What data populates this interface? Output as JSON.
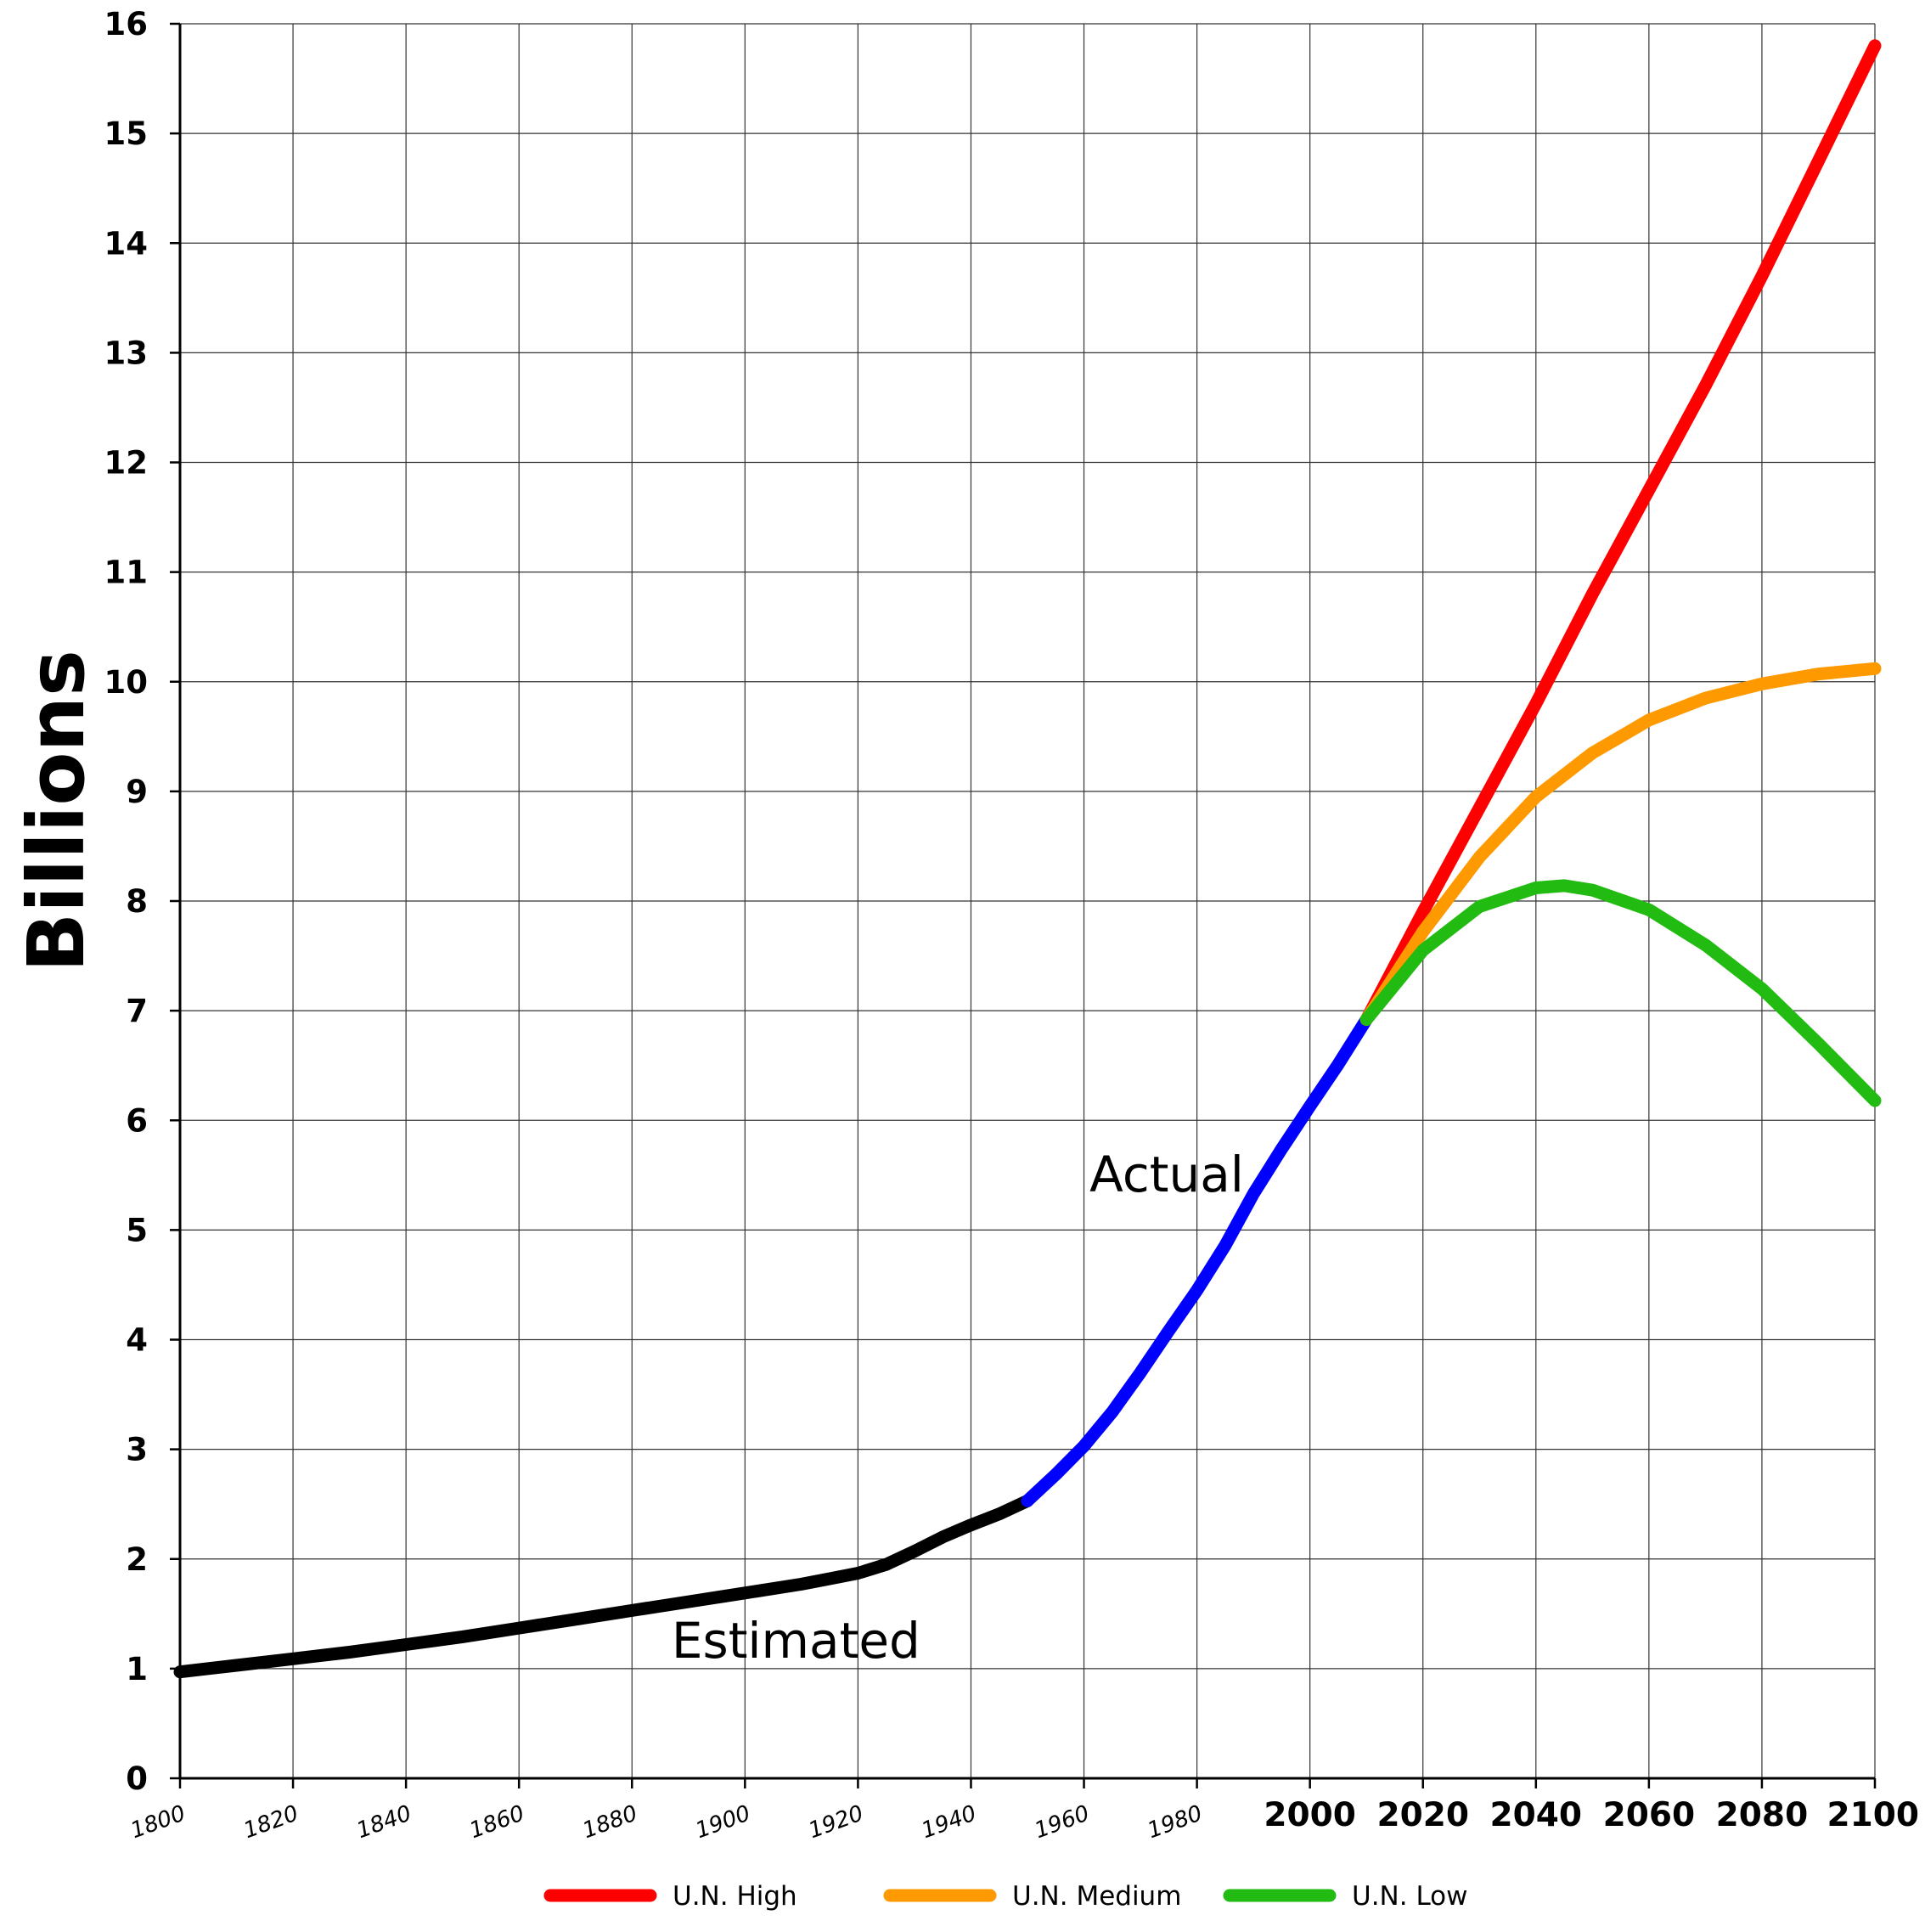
{
  "chart_data": {
    "type": "line",
    "ylabel": "Billions",
    "xlim": [
      1800,
      2100
    ],
    "ylim": [
      0,
      16
    ],
    "grid": true,
    "legend_position": "bottom",
    "x_ticks": [
      "1800",
      "1820",
      "1840",
      "1860",
      "1880",
      "1900",
      "1920",
      "1940",
      "1960",
      "1980",
      "2000",
      "2020",
      "2040",
      "2060",
      "2080",
      "2100"
    ],
    "y_ticks": [
      "0",
      "1",
      "2",
      "3",
      "4",
      "5",
      "6",
      "7",
      "8",
      "9",
      "10",
      "11",
      "12",
      "13",
      "14",
      "15",
      "16"
    ],
    "annotations": [
      {
        "text": "Estimated",
        "x": 1887,
        "y": 1.1
      },
      {
        "text": "Actual",
        "x": 1961,
        "y": 5.35
      }
    ],
    "series": [
      {
        "color": "#000000",
        "x": [
          1800,
          1810,
          1820,
          1830,
          1840,
          1850,
          1860,
          1870,
          1880,
          1890,
          1900,
          1910,
          1915,
          1920,
          1925,
          1930,
          1935,
          1940,
          1945,
          1950
        ],
        "y": [
          0.97,
          1.03,
          1.09,
          1.15,
          1.22,
          1.29,
          1.37,
          1.45,
          1.53,
          1.61,
          1.69,
          1.77,
          1.82,
          1.87,
          1.95,
          2.07,
          2.2,
          2.31,
          2.41,
          2.53
        ]
      },
      {
        "color": "#0000ff",
        "x": [
          1950,
          1955,
          1960,
          1965,
          1970,
          1975,
          1980,
          1985,
          1990,
          1995,
          2000,
          2005,
          2010
        ],
        "y": [
          2.53,
          2.77,
          3.03,
          3.34,
          3.7,
          4.08,
          4.45,
          4.86,
          5.33,
          5.74,
          6.13,
          6.51,
          6.92
        ]
      },
      {
        "name": "U.N. High",
        "color": "#ff0000",
        "x": [
          2010,
          2020,
          2030,
          2040,
          2050,
          2060,
          2070,
          2080,
          2090,
          2100
        ],
        "y": [
          6.92,
          7.9,
          8.85,
          9.8,
          10.8,
          11.75,
          12.7,
          13.7,
          14.75,
          15.8
        ]
      },
      {
        "name": "U.N. Medium",
        "color": "#ff9900",
        "x": [
          2010,
          2020,
          2030,
          2040,
          2050,
          2060,
          2070,
          2080,
          2090,
          2100
        ],
        "y": [
          6.92,
          7.72,
          8.4,
          8.95,
          9.35,
          9.65,
          9.85,
          9.98,
          10.07,
          10.12
        ]
      },
      {
        "name": "U.N. Low",
        "color": "#22bb11",
        "x": [
          2010,
          2020,
          2030,
          2040,
          2045,
          2050,
          2060,
          2070,
          2080,
          2090,
          2100
        ],
        "y": [
          6.92,
          7.55,
          7.95,
          8.12,
          8.14,
          8.1,
          7.92,
          7.6,
          7.2,
          6.7,
          6.18
        ]
      }
    ]
  }
}
